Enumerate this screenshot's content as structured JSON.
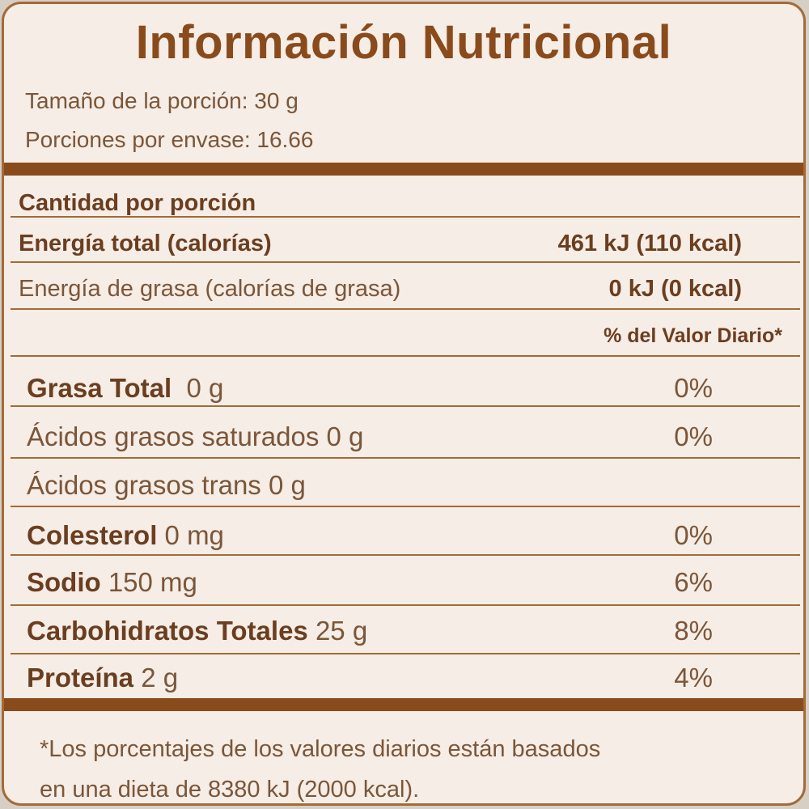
{
  "title": "Información Nutricional",
  "serving": {
    "size": "Tamaño de la porción: 30 g",
    "per_container": "Porciones por envase: 16.66"
  },
  "amount_header": "Cantidad por porción",
  "energy": {
    "label": "Energía total (calorías)",
    "value": "461 kJ (110 kcal)"
  },
  "fat_energy": {
    "label": "Energía de grasa (calorías de grasa)",
    "value": "0 kJ (0 kcal)"
  },
  "dv_header": "% del Valor Diario*",
  "nutrients": [
    {
      "name": "Grasa Total",
      "amount": "0 g",
      "dv": "0%"
    },
    {
      "name": "Ácidos grasos saturados 0 g",
      "amount": "",
      "dv": "0%"
    },
    {
      "name": "Ácidos grasos trans 0 g",
      "amount": "",
      "dv": ""
    },
    {
      "name": "Colesterol",
      "amount": "0 mg",
      "dv": "0%"
    },
    {
      "name": "Sodio",
      "amount": "150 mg",
      "dv": "6%"
    },
    {
      "name": "Carbohidratos Totales",
      "amount": "25 g",
      "dv": "8%"
    },
    {
      "name": "Proteína",
      "amount": "2 g",
      "dv": "4%"
    }
  ],
  "footnote": {
    "line1": "*Los porcentajes de los valores diarios están basados",
    "line2": "en una dieta de 8380 kJ (2000 kcal)."
  },
  "colors": {
    "brown": "#8a4b1c",
    "background": "#f5ede6",
    "text": "#6b3e1f"
  }
}
